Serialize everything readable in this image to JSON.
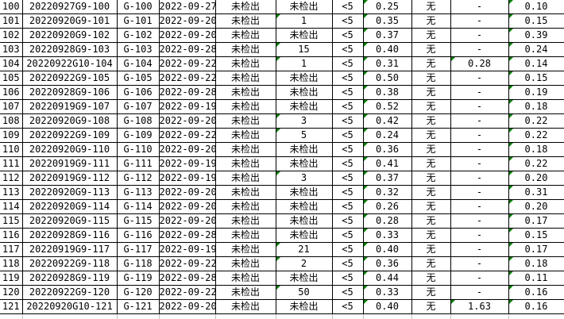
{
  "app": {
    "description_label": "spreadsheet table of sample test results",
    "not_detected_label": "未检出",
    "none_label": "无"
  },
  "colors": {
    "error_indicator_green": "#008000",
    "grid_border": "#000000",
    "gridline_gray": "#bfbfbf",
    "background": "#ffffff",
    "text": "#000000"
  },
  "table": {
    "rows": [
      {
        "cells": [
          "100",
          "20220927G9-100",
          "G-100",
          "2022-09-27",
          "未检出",
          "未检出",
          "<5",
          "0.25",
          "无",
          "-",
          "0.10"
        ],
        "flags": [
          7,
          10
        ]
      },
      {
        "cells": [
          "101",
          "20220920G9-101",
          "G-101",
          "2022-09-20",
          "未检出",
          "1",
          "<5",
          "0.35",
          "无",
          "-",
          "0.15"
        ],
        "flags": [
          5,
          7,
          10
        ]
      },
      {
        "cells": [
          "102",
          "20220920G9-102",
          "G-102",
          "2022-09-20",
          "未检出",
          "未检出",
          "<5",
          "0.37",
          "无",
          "-",
          "0.39"
        ],
        "flags": [
          7,
          10
        ]
      },
      {
        "cells": [
          "103",
          "20220928G9-103",
          "G-103",
          "2022-09-28",
          "未检出",
          "15",
          "<5",
          "0.40",
          "无",
          "-",
          "0.24"
        ],
        "flags": [
          5,
          7,
          10
        ]
      },
      {
        "cells": [
          "104",
          "20220922G10-104",
          "G-104",
          "2022-09-22",
          "未检出",
          "1",
          "<5",
          "0.31",
          "无",
          "0.28",
          "0.14"
        ],
        "flags": [
          5,
          7,
          9,
          10
        ]
      },
      {
        "cells": [
          "105",
          "20220922G9-105",
          "G-105",
          "2022-09-22",
          "未检出",
          "未检出",
          "<5",
          "0.50",
          "无",
          "-",
          "0.15"
        ],
        "flags": [
          7,
          10
        ]
      },
      {
        "cells": [
          "106",
          "20220928G9-106",
          "G-106",
          "2022-09-28",
          "未检出",
          "未检出",
          "<5",
          "0.38",
          "无",
          "-",
          "0.19"
        ],
        "flags": [
          7,
          10
        ]
      },
      {
        "cells": [
          "107",
          "20220919G9-107",
          "G-107",
          "2022-09-19",
          "未检出",
          "未检出",
          "<5",
          "0.52",
          "无",
          "-",
          "0.18"
        ],
        "flags": [
          7,
          10
        ]
      },
      {
        "cells": [
          "108",
          "20220920G9-108",
          "G-108",
          "2022-09-20",
          "未检出",
          "3",
          "<5",
          "0.42",
          "无",
          "-",
          "0.22"
        ],
        "flags": [
          5,
          7,
          10
        ]
      },
      {
        "cells": [
          "109",
          "20220922G9-109",
          "G-109",
          "2022-09-22",
          "未检出",
          "5",
          "<5",
          "0.24",
          "无",
          "-",
          "0.22"
        ],
        "flags": [
          5,
          7,
          10
        ]
      },
      {
        "cells": [
          "110",
          "20220920G9-110",
          "G-110",
          "2022-09-20",
          "未检出",
          "未检出",
          "<5",
          "0.36",
          "无",
          "-",
          "0.18"
        ],
        "flags": [
          7,
          10
        ]
      },
      {
        "cells": [
          "111",
          "20220919G9-111",
          "G-111",
          "2022-09-19",
          "未检出",
          "未检出",
          "<5",
          "0.41",
          "无",
          "-",
          "0.22"
        ],
        "flags": [
          7,
          10
        ]
      },
      {
        "cells": [
          "112",
          "20220919G9-112",
          "G-112",
          "2022-09-19",
          "未检出",
          "3",
          "<5",
          "0.37",
          "无",
          "-",
          "0.20"
        ],
        "flags": [
          5,
          7,
          10
        ]
      },
      {
        "cells": [
          "113",
          "20220920G9-113",
          "G-113",
          "2022-09-20",
          "未检出",
          "未检出",
          "<5",
          "0.32",
          "无",
          "-",
          "0.31"
        ],
        "flags": [
          7,
          10
        ]
      },
      {
        "cells": [
          "114",
          "20220920G9-114",
          "G-114",
          "2022-09-20",
          "未检出",
          "未检出",
          "<5",
          "0.26",
          "无",
          "-",
          "0.20"
        ],
        "flags": [
          7,
          10
        ]
      },
      {
        "cells": [
          "115",
          "20220920G9-115",
          "G-115",
          "2022-09-20",
          "未检出",
          "未检出",
          "<5",
          "0.28",
          "无",
          "-",
          "0.17"
        ],
        "flags": [
          7,
          10
        ]
      },
      {
        "cells": [
          "116",
          "20220928G9-116",
          "G-116",
          "2022-09-28",
          "未检出",
          "未检出",
          "<5",
          "0.33",
          "无",
          "-",
          "0.15"
        ],
        "flags": [
          7,
          10
        ]
      },
      {
        "cells": [
          "117",
          "20220919G9-117",
          "G-117",
          "2022-09-19",
          "未检出",
          "21",
          "<5",
          "0.40",
          "无",
          "-",
          "0.17"
        ],
        "flags": [
          5,
          7,
          10
        ]
      },
      {
        "cells": [
          "118",
          "20220922G9-118",
          "G-118",
          "2022-09-22",
          "未检出",
          "2",
          "<5",
          "0.36",
          "无",
          "-",
          "0.18"
        ],
        "flags": [
          5,
          7,
          10
        ]
      },
      {
        "cells": [
          "119",
          "20220928G9-119",
          "G-119",
          "2022-09-28",
          "未检出",
          "未检出",
          "<5",
          "0.44",
          "无",
          "-",
          "0.11"
        ],
        "flags": [
          7,
          10
        ]
      },
      {
        "cells": [
          "120",
          "20220922G9-120",
          "G-120",
          "2022-09-22",
          "未检出",
          "50",
          "<5",
          "0.33",
          "无",
          "-",
          "0.16"
        ],
        "flags": [
          5,
          7,
          10
        ]
      },
      {
        "cells": [
          "121",
          "20220920G10-121",
          "G-121",
          "2022-09-20",
          "未检出",
          "未检出",
          "<5",
          "0.40",
          "无",
          "1.63",
          "0.16"
        ],
        "flags": [
          7,
          9,
          10
        ]
      }
    ]
  }
}
